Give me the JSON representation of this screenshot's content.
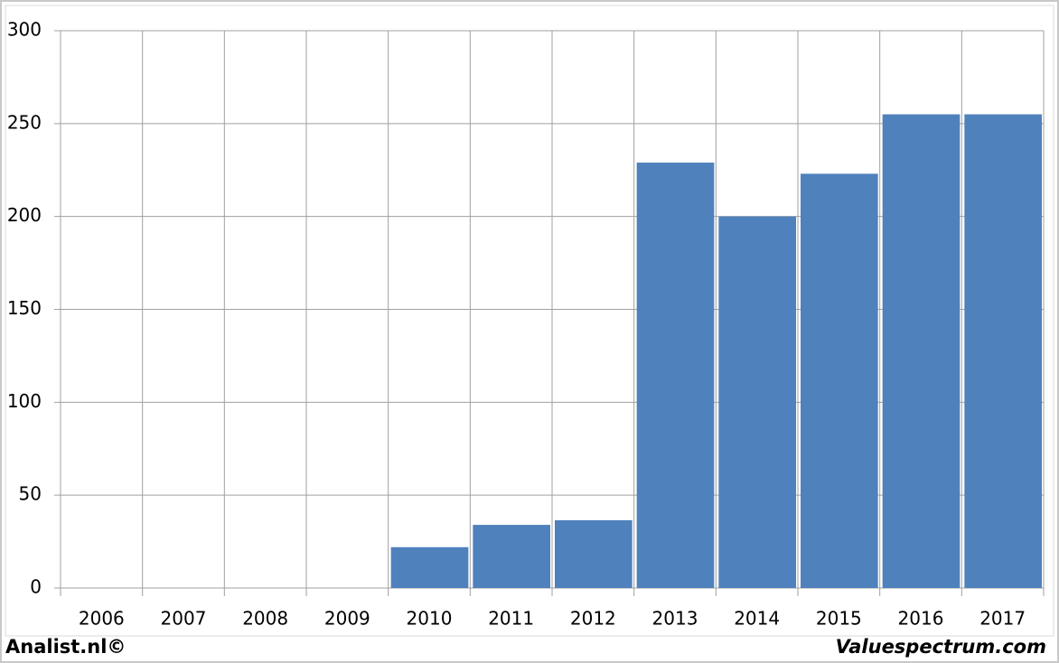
{
  "chart_data": {
    "type": "bar",
    "categories": [
      "2006",
      "2007",
      "2008",
      "2009",
      "2010",
      "2011",
      "2012",
      "2013",
      "2014",
      "2015",
      "2016",
      "2017"
    ],
    "values": [
      null,
      null,
      null,
      null,
      22,
      34,
      36.5,
      229,
      200,
      223,
      255,
      255
    ],
    "color": "#4f81bd",
    "ylim": [
      0,
      300
    ],
    "yticks": [
      0,
      50,
      100,
      150,
      200,
      250,
      300
    ],
    "grid": true
  },
  "footer": {
    "left": "Analist.nl©",
    "right": "Valuespectrum.com"
  }
}
